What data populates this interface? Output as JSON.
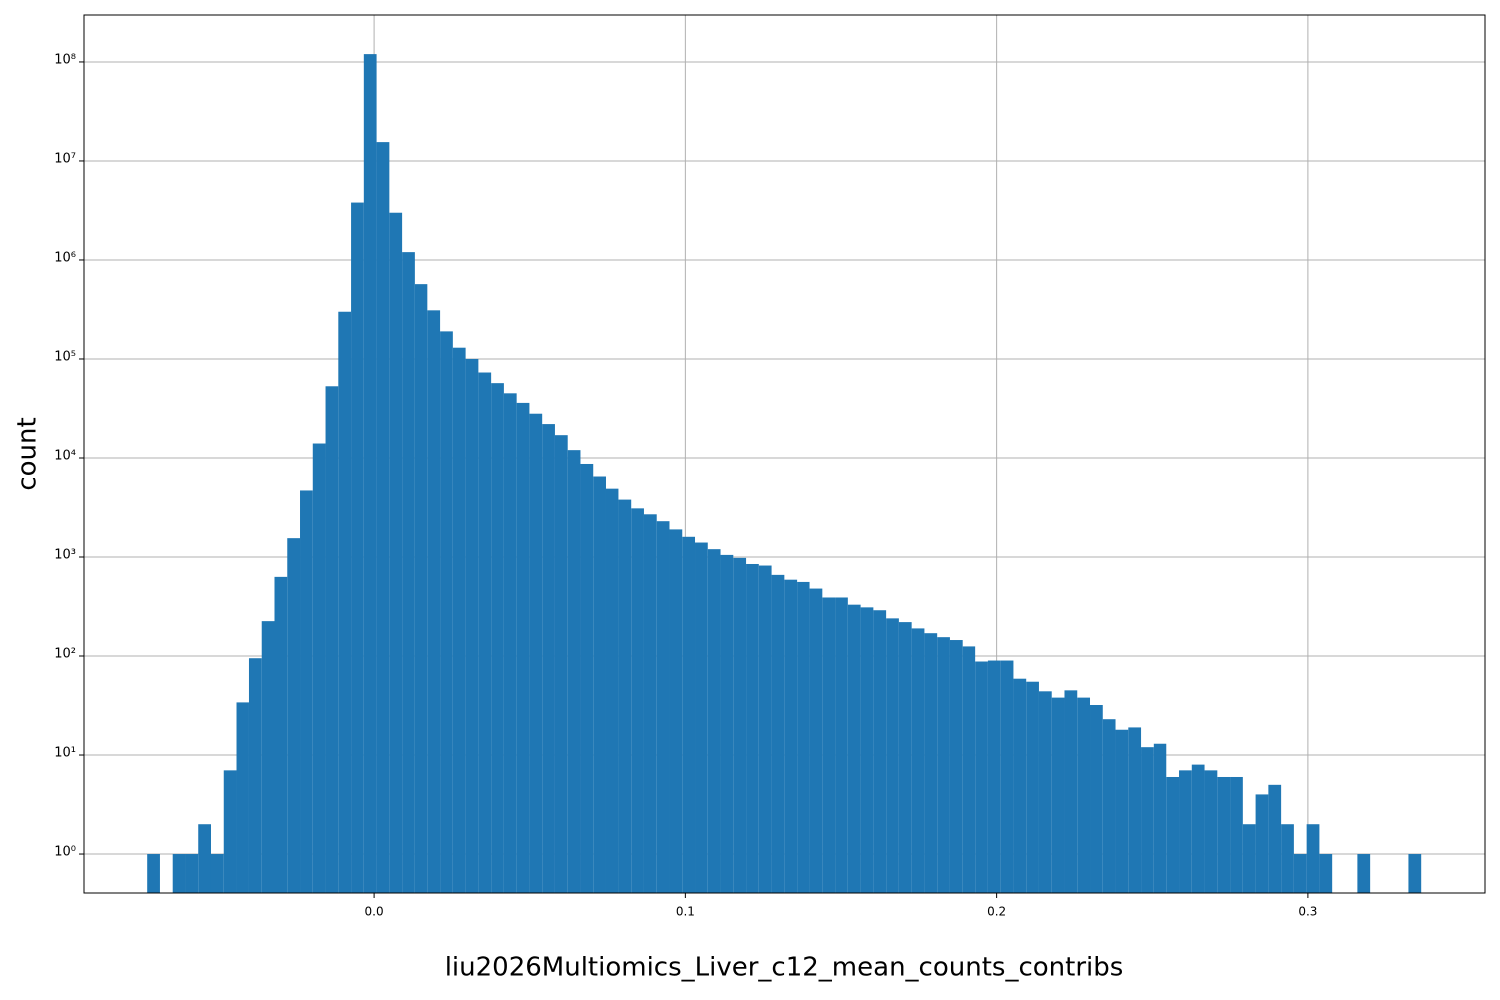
{
  "chart_data": {
    "type": "histogram",
    "xlabel": "liu2026Multiomics_Liver_c12_mean_counts_contribs",
    "ylabel": "count",
    "color": "#1f77b4",
    "log_y": true,
    "grid": true,
    "bins": [
      -0.0729,
      -0.0688,
      -0.0647,
      -0.0606,
      -0.0565,
      -0.0524,
      -0.0483,
      -0.0442,
      -0.0402,
      -0.0361,
      -0.032,
      -0.0279,
      -0.0238,
      -0.0197,
      -0.0156,
      -0.0115,
      -0.0074,
      -0.0033,
      0.0008,
      0.0049,
      0.009,
      0.0131,
      0.0171,
      0.0212,
      0.0253,
      0.0294,
      0.0335,
      0.0376,
      0.0417,
      0.0458,
      0.0499,
      0.054,
      0.0581,
      0.0622,
      0.0663,
      0.0704,
      0.0745,
      0.0785,
      0.0826,
      0.0867,
      0.0908,
      0.0949,
      0.099,
      0.1031,
      0.1072,
      0.1113,
      0.1154,
      0.1195,
      0.1236,
      0.1277,
      0.1318,
      0.1359,
      0.1399,
      0.144,
      0.1481,
      0.1522,
      0.1563,
      0.1604,
      0.1645,
      0.1686,
      0.1727,
      0.1768,
      0.1809,
      0.185,
      0.1891,
      0.1931,
      0.1972,
      0.2013,
      0.2054,
      0.2095,
      0.2136,
      0.2177,
      0.2218,
      0.2259,
      0.23,
      0.2341,
      0.2382,
      0.2423,
      0.2464,
      0.2505,
      0.2545,
      0.2586,
      0.2627,
      0.2668,
      0.2709,
      0.275,
      0.2791,
      0.2832,
      0.2873,
      0.2914,
      0.2955,
      0.2996,
      0.3037,
      0.3078,
      0.3119,
      0.3159,
      0.32,
      0.3241,
      0.3282,
      0.3323,
      0.3364
    ],
    "counts": [
      1,
      0,
      1,
      1,
      2,
      1,
      7,
      34,
      95,
      225,
      630,
      1550,
      4700,
      14000,
      53000,
      300000,
      3800000,
      120000000,
      15500000,
      3000000,
      1200000,
      570000,
      310000,
      190000,
      130000,
      100000,
      73000,
      57000,
      45000,
      36000,
      28000,
      22000,
      17000,
      12000,
      8700,
      6500,
      4900,
      3800,
      3100,
      2700,
      2300,
      1900,
      1600,
      1400,
      1200,
      1050,
      980,
      850,
      820,
      660,
      590,
      560,
      480,
      390,
      390,
      330,
      310,
      290,
      240,
      220,
      190,
      170,
      155,
      145,
      125,
      88,
      90,
      90,
      59,
      55,
      44,
      38,
      45,
      38,
      32,
      23,
      18,
      19,
      12,
      13,
      6,
      7,
      8,
      7,
      6,
      6,
      2,
      4,
      5,
      2,
      1,
      2,
      1,
      0,
      0,
      1,
      0,
      0,
      0,
      1
    ],
    "xlim": [
      -0.0932,
      0.3569
    ],
    "xticks": [
      {
        "value": 0,
        "label": "0.0"
      },
      0.1,
      0.2,
      0.3
    ],
    "ylim": [
      0.404,
      298000000
    ],
    "yticks": [
      {
        "value": 1,
        "label": "10⁰"
      },
      {
        "value": 10,
        "label": "10¹"
      },
      {
        "value": 100,
        "label": "10²"
      },
      {
        "value": 1000,
        "label": "10³"
      },
      {
        "value": 10000,
        "label": "10⁴"
      },
      {
        "value": 100000,
        "label": "10⁵"
      },
      {
        "value": 1000000,
        "label": "10⁶"
      },
      {
        "value": 10000000,
        "label": "10⁷"
      },
      {
        "value": 100000000,
        "label": "10⁸"
      }
    ]
  }
}
